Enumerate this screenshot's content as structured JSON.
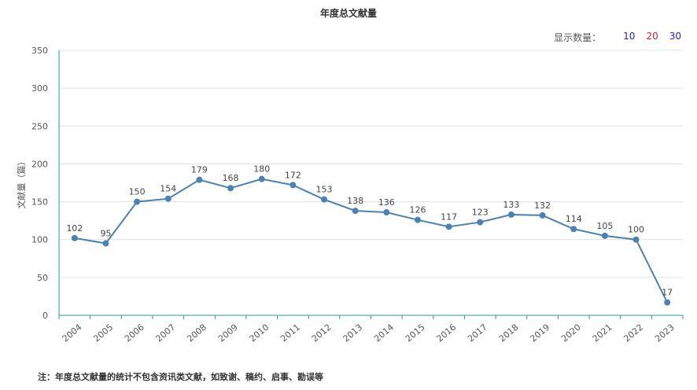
{
  "header": {
    "title": "年度总文献量"
  },
  "display_count": {
    "label": "显示数量：",
    "options": [
      {
        "label": "10",
        "color": "#1f1fc8"
      },
      {
        "label": "20",
        "color": "#d42020"
      },
      {
        "label": "30",
        "color": "#1f1fc8"
      }
    ]
  },
  "footnote": "注：年度总文献量的统计不包含资讯类文献，如致谢、稿约、启事、勘误等",
  "chart_data": {
    "type": "line",
    "title": "年度总文献量",
    "ylabel": "文献量（篇）",
    "xlabel": "",
    "ylim": [
      0,
      350
    ],
    "yticks": [
      0,
      50,
      100,
      150,
      200,
      250,
      300,
      350
    ],
    "grid": true,
    "line_color": "#4a82b4",
    "categories": [
      "2004",
      "2005",
      "2006",
      "2007",
      "2008",
      "2009",
      "2010",
      "2011",
      "2012",
      "2013",
      "2014",
      "2015",
      "2016",
      "2017",
      "2018",
      "2019",
      "2020",
      "2021",
      "2022",
      "2023"
    ],
    "values": [
      102,
      95,
      150,
      154,
      179,
      168,
      180,
      172,
      153,
      138,
      136,
      126,
      117,
      123,
      133,
      132,
      114,
      105,
      100,
      17
    ]
  }
}
